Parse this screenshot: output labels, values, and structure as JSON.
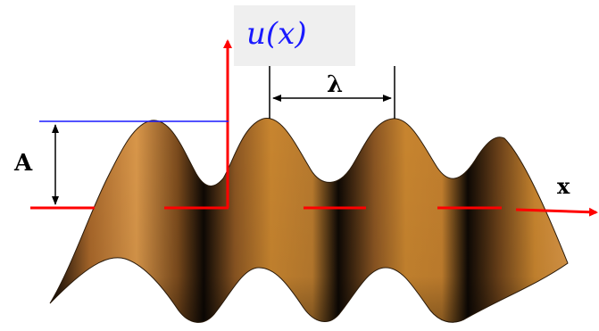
{
  "labels": {
    "function": "u(x)",
    "amplitude": "A",
    "wavelength": "λ",
    "x_axis": "x"
  },
  "colors": {
    "axis": "#ff0000",
    "amplitude_guide": "#1a1aff",
    "dimension_lines": "#000000",
    "surface_light": "#c8852f",
    "surface_dark": "#0d0804",
    "function_label": "#1a1aff",
    "label_box": "#efefef"
  }
}
